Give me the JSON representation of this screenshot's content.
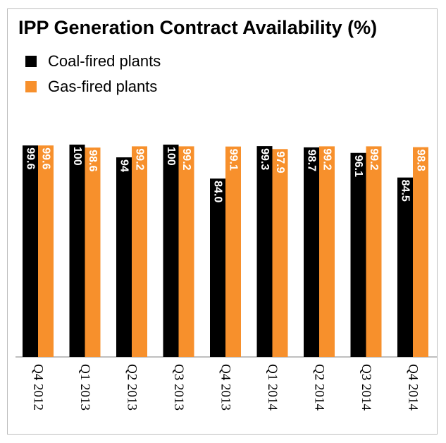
{
  "colors": {
    "coal": "#000000",
    "gas": "#f7902c",
    "axis": "#7f7f7f",
    "frame": "#bdbdbd"
  },
  "legend": {
    "coal_label": "Coal-fired plants",
    "gas_label": "Gas-fired plants"
  },
  "chart_data": {
    "type": "bar",
    "title": "IPP Generation Contract Availability (%)",
    "xlabel": "",
    "ylabel": "",
    "ylim": [
      0,
      100
    ],
    "grid": false,
    "legend_position": "top-left",
    "categories": [
      "Q4 2012",
      "Q1 2013",
      "Q2 2013",
      "Q3 2013",
      "Q4 2013",
      "Q1 2014",
      "Q2 2014",
      "Q3 2014",
      "Q4 2014"
    ],
    "series": [
      {
        "name": "Coal-fired plants",
        "values": [
          99.6,
          100,
          94,
          100,
          84.0,
          99.3,
          98.7,
          96.1,
          84.5
        ],
        "labels": [
          "99.6",
          "100",
          "94",
          "100",
          "84.0",
          "99.3",
          "98.7",
          "96.1",
          "84.5"
        ]
      },
      {
        "name": "Gas-fired plants",
        "values": [
          99.6,
          98.6,
          99.2,
          99.2,
          99.1,
          97.9,
          99.2,
          99.2,
          98.8
        ],
        "labels": [
          "99.6",
          "98.6",
          "99.2",
          "99.2",
          "99.1",
          "97.9",
          "99.2",
          "99.2",
          "98.8"
        ]
      }
    ]
  }
}
